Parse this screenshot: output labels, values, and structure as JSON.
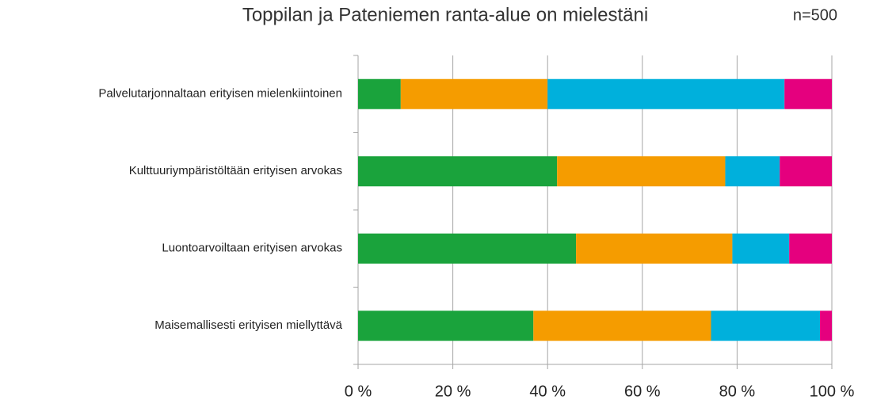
{
  "chart_data": {
    "type": "stacked-barh",
    "title": "Toppilan ja Pateniemen ranta-alue on mielestäni",
    "annotation": "n=500",
    "categories": [
      "Palvelutarjonnaltaan erityisen mielenkiintoinen",
      "Kulttuuriympäristöltään erityisen arvokas",
      "Luontoarvoiltaan erityisen arvokas",
      "Maisemallisesti erityisen miellyttävä"
    ],
    "series": [
      {
        "color": "#1aa33c",
        "values": [
          9,
          42,
          46,
          37
        ]
      },
      {
        "color": "#f59c00",
        "values": [
          31,
          35.5,
          33,
          37.5
        ]
      },
      {
        "color": "#00b0dc",
        "values": [
          50,
          11.5,
          12,
          23
        ]
      },
      {
        "color": "#e5007e",
        "values": [
          10,
          11,
          9,
          2.5
        ]
      }
    ],
    "xlim": [
      0,
      100
    ],
    "xticks": [
      {
        "value": 0,
        "label": "0 %"
      },
      {
        "value": 20,
        "label": "20 %"
      },
      {
        "value": 40,
        "label": "40 %"
      },
      {
        "value": 60,
        "label": "60 %"
      },
      {
        "value": 80,
        "label": "80 %"
      },
      {
        "value": 100,
        "label": "100 %"
      }
    ],
    "grid": true
  }
}
